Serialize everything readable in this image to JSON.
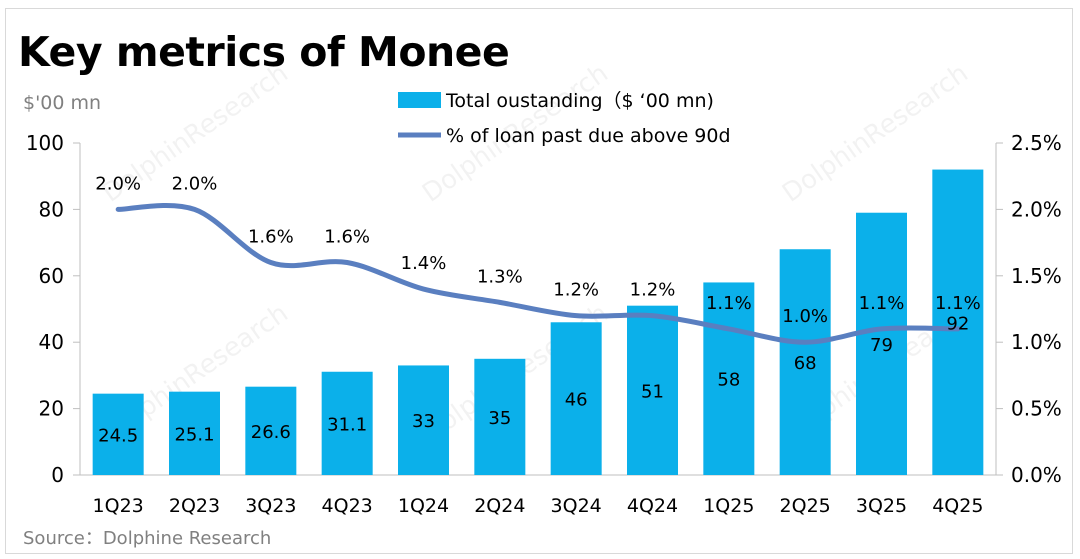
{
  "title": "Key metrics of Monee",
  "unit_label": "$'00 mn",
  "source": "Source：Dolphine Research",
  "watermark": "DolphinResearch",
  "colors": {
    "bar": "#0bb0ea",
    "line": "#5a7fc0",
    "axis": "#bfbfbf",
    "text": "#000000"
  },
  "chart_data": {
    "type": "bar",
    "title": "Key metrics of Monee",
    "categories": [
      "1Q23",
      "2Q23",
      "3Q23",
      "4Q23",
      "1Q24",
      "2Q24",
      "3Q24",
      "4Q24",
      "1Q25",
      "2Q25",
      "3Q25",
      "4Q25"
    ],
    "series": [
      {
        "name": "Total oustanding（$ ‘00 mn)",
        "type": "bar",
        "axis": "left",
        "values": [
          24.5,
          25.1,
          26.6,
          31.1,
          33,
          35,
          46,
          51,
          58,
          68,
          79,
          92
        ],
        "labels": [
          "24.5",
          "25.1",
          "26.6",
          "31.1",
          "33",
          "35",
          "46",
          "51",
          "58",
          "68",
          "79",
          "92"
        ]
      },
      {
        "name": "% of loan past due above 90d",
        "type": "line",
        "axis": "right",
        "values": [
          2.0,
          2.0,
          1.6,
          1.6,
          1.4,
          1.3,
          1.2,
          1.2,
          1.1,
          1.0,
          1.1,
          1.1
        ],
        "labels": [
          "2.0%",
          "2.0%",
          "1.6%",
          "1.6%",
          "1.4%",
          "1.3%",
          "1.2%",
          "1.2%",
          "1.1%",
          "1.0%",
          "1.1%",
          "1.1%"
        ]
      }
    ],
    "ylabel": "$'00 mn",
    "ylim": [
      0,
      100
    ],
    "yticks": [
      "0",
      "20",
      "40",
      "60",
      "80",
      "100"
    ],
    "y2lim": [
      0,
      2.5
    ],
    "y2ticks": [
      "0.0%",
      "0.5%",
      "1.0%",
      "1.5%",
      "2.0%",
      "2.5%"
    ],
    "grid": false,
    "legend_position": "top-center"
  }
}
